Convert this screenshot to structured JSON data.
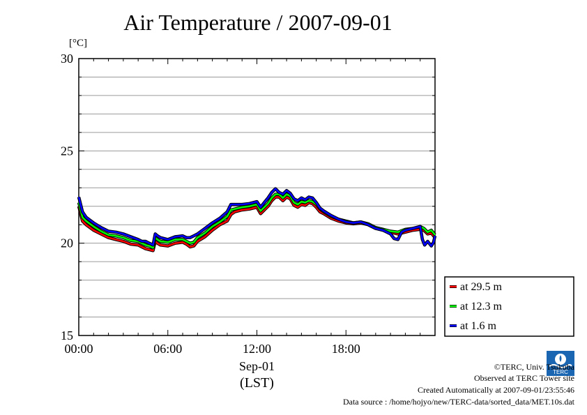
{
  "title": "Air Temperature / 2007-09-01",
  "unit": "[°C]",
  "chart_data": {
    "type": "line",
    "title": "Air Temperature / 2007-09-01",
    "ylabel": "[°C]",
    "xlabel": "Sep-01 (LST)",
    "xlim": [
      0,
      24
    ],
    "ylim": [
      15,
      30
    ],
    "x_ticks": [
      {
        "value": 0,
        "label": "00:00"
      },
      {
        "value": 6,
        "label": "06:00"
      },
      {
        "value": 12,
        "label": "12:00"
      },
      {
        "value": 18,
        "label": "18:00"
      }
    ],
    "x_date_label": "Sep-01",
    "x_zone_label": "(LST)",
    "y_ticks": [
      15,
      20,
      25,
      30
    ],
    "grid": true,
    "legend_position": "right-bottom",
    "series": [
      {
        "name": "at 29.5 m",
        "color": "#ff0000",
        "x": [
          0,
          0.25,
          0.5,
          1,
          1.5,
          2,
          2.5,
          3,
          3.5,
          4,
          4.25,
          4.5,
          4.75,
          5,
          5.15,
          5.3,
          5.5,
          6,
          6.5,
          7,
          7.25,
          7.5,
          7.75,
          8,
          8.5,
          9,
          9.5,
          10,
          10.25,
          10.5,
          11,
          11.5,
          12,
          12.25,
          12.5,
          12.75,
          13,
          13.25,
          13.5,
          13.75,
          14,
          14.25,
          14.5,
          14.75,
          15,
          15.25,
          15.5,
          15.75,
          16,
          16.25,
          16.5,
          17,
          17.5,
          18,
          18.5,
          19,
          19.5,
          20,
          20.5,
          21,
          21.5,
          22,
          22.5,
          23,
          23.25,
          23.5,
          23.75,
          24
        ],
        "y": [
          22,
          21.2,
          21,
          20.7,
          20.5,
          20.3,
          20.2,
          20.1,
          19.95,
          19.9,
          19.8,
          19.7,
          19.65,
          19.6,
          20.1,
          20,
          19.9,
          19.85,
          20,
          20.05,
          19.95,
          19.8,
          19.85,
          20.1,
          20.35,
          20.7,
          21,
          21.2,
          21.55,
          21.7,
          21.8,
          21.85,
          21.95,
          21.6,
          21.8,
          22,
          22.3,
          22.5,
          22.5,
          22.3,
          22.5,
          22.4,
          22.05,
          21.95,
          22.1,
          22.05,
          22.2,
          22.15,
          21.95,
          21.7,
          21.6,
          21.35,
          21.2,
          21.1,
          21.05,
          21.1,
          21,
          20.8,
          20.7,
          20.6,
          20.5,
          20.6,
          20.7,
          20.75,
          20.7,
          20.5,
          20.55,
          20.3
        ]
      },
      {
        "name": "at 12.3 m",
        "color": "#00ff00",
        "x": [
          0,
          0.25,
          0.5,
          1,
          1.5,
          2,
          2.5,
          3,
          3.5,
          4,
          4.25,
          4.5,
          4.75,
          5,
          5.15,
          5.3,
          5.5,
          6,
          6.5,
          7,
          7.25,
          7.5,
          7.75,
          8,
          8.5,
          9,
          9.5,
          10,
          10.25,
          10.5,
          11,
          11.5,
          12,
          12.25,
          12.5,
          12.75,
          13,
          13.25,
          13.5,
          13.75,
          14,
          14.25,
          14.5,
          14.75,
          15,
          15.25,
          15.5,
          15.75,
          16,
          16.25,
          16.5,
          17,
          17.5,
          18,
          18.5,
          19,
          19.5,
          20,
          20.5,
          21,
          21.5,
          22,
          22.5,
          23,
          23.25,
          23.5,
          23.75,
          24
        ],
        "y": [
          22.2,
          21.4,
          21.2,
          20.9,
          20.65,
          20.45,
          20.4,
          20.3,
          20.15,
          20.1,
          20,
          19.9,
          19.85,
          19.75,
          20.3,
          20.2,
          20.1,
          20.05,
          20.2,
          20.2,
          20.1,
          20,
          20.05,
          20.3,
          20.55,
          20.9,
          21.15,
          21.45,
          21.8,
          21.85,
          21.95,
          22,
          22.1,
          21.75,
          21.95,
          22.15,
          22.45,
          22.65,
          22.65,
          22.45,
          22.65,
          22.55,
          22.2,
          22.1,
          22.25,
          22.2,
          22.3,
          22.25,
          22.1,
          21.85,
          21.7,
          21.45,
          21.3,
          21.2,
          21.1,
          21.15,
          21.05,
          20.85,
          20.75,
          20.65,
          20.6,
          20.75,
          20.8,
          20.9,
          20.8,
          20.6,
          20.7,
          20.45
        ]
      },
      {
        "name": "at 1.6 m",
        "color": "#0000ff",
        "x": [
          0,
          0.25,
          0.5,
          1,
          1.5,
          2,
          2.5,
          3,
          3.5,
          4,
          4.25,
          4.5,
          4.75,
          5,
          5.15,
          5.3,
          5.5,
          6,
          6.5,
          7,
          7.25,
          7.5,
          7.75,
          8,
          8.5,
          9,
          9.5,
          10,
          10.25,
          10.5,
          11,
          11.5,
          12,
          12.25,
          12.5,
          12.75,
          13,
          13.25,
          13.5,
          13.75,
          14,
          14.25,
          14.5,
          14.75,
          15,
          15.25,
          15.5,
          15.75,
          16,
          16.25,
          16.5,
          17,
          17.5,
          18,
          18.5,
          19,
          19.5,
          20,
          20.5,
          21,
          21.25,
          21.5,
          21.75,
          22,
          22.5,
          23,
          23.15,
          23.3,
          23.5,
          23.75,
          23.9,
          24
        ],
        "y": [
          22.5,
          21.7,
          21.4,
          21.1,
          20.85,
          20.65,
          20.6,
          20.5,
          20.35,
          20.2,
          20.1,
          20.1,
          20,
          19.9,
          20.5,
          20.4,
          20.3,
          20.2,
          20.35,
          20.4,
          20.3,
          20.3,
          20.4,
          20.5,
          20.8,
          21.1,
          21.35,
          21.7,
          22.1,
          22.1,
          22.1,
          22.15,
          22.25,
          21.95,
          22.2,
          22.45,
          22.75,
          22.95,
          22.75,
          22.65,
          22.85,
          22.7,
          22.4,
          22.3,
          22.45,
          22.35,
          22.5,
          22.45,
          22.2,
          21.9,
          21.75,
          21.5,
          21.3,
          21.15,
          21.1,
          21.15,
          21,
          20.8,
          20.7,
          20.5,
          20.25,
          20.2,
          20.6,
          20.7,
          20.8,
          20.9,
          20.2,
          19.9,
          20.1,
          19.85,
          20.05,
          20.4
        ]
      }
    ]
  },
  "legend": [
    {
      "label": "at 29.5 m",
      "color": "#ff0000"
    },
    {
      "label": "at 12.3 m",
      "color": "#00ff00"
    },
    {
      "label": "at 1.6 m",
      "color": "#0000ff"
    }
  ],
  "footer": {
    "copyright": "©TERC, Univ. Tsukuba",
    "observed": "Observed at TERC Tower site",
    "created": "Created Automatically at 2007-09-01/23:55:46",
    "source": "Data source : /home/hojyo/new/TERC-data/sorted_data/MET.10s.dat"
  },
  "logo": {
    "text": "TERC",
    "color": "#1a66b3"
  }
}
